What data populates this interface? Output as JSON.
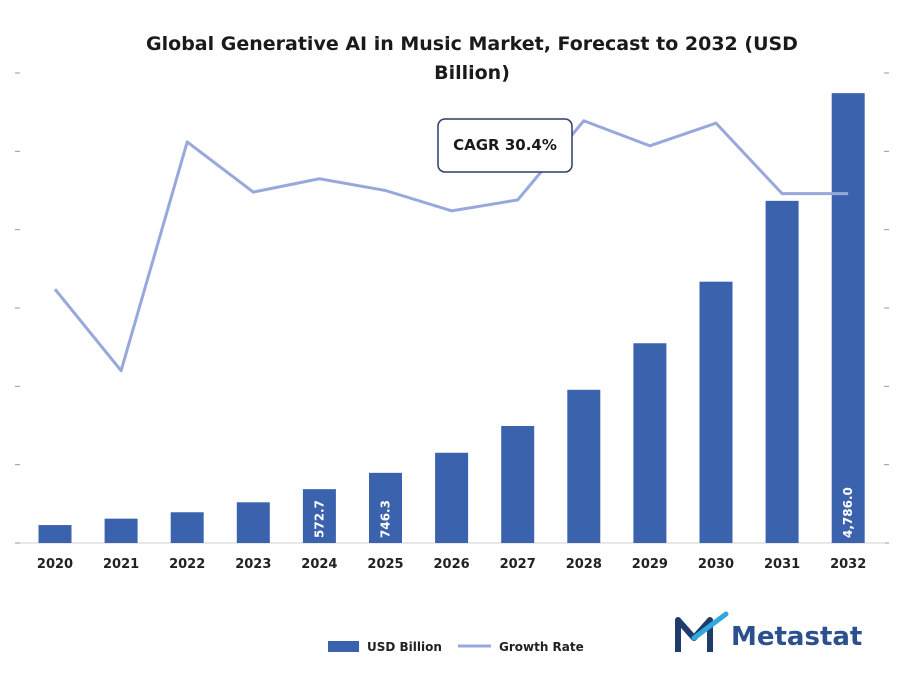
{
  "chart_data": {
    "type": "bar",
    "title_line1": "Global Generative AI in Music Market, Forecast to 2032 (USD",
    "title_line2": "Billion)",
    "categories": [
      "2020",
      "2021",
      "2022",
      "2023",
      "2024",
      "2025",
      "2026",
      "2027",
      "2028",
      "2029",
      "2030",
      "2031",
      "2032"
    ],
    "series": [
      {
        "name": "USD Billion",
        "kind": "bar",
        "color": "#3b63ad",
        "values": [
          191,
          259,
          327,
          433,
          572.7,
          746.3,
          960,
          1245,
          1630,
          2125,
          2780,
          3640,
          4786.0
        ]
      },
      {
        "name": "Growth Rate",
        "kind": "line",
        "color": "#98a8dc",
        "values": [
          32.4,
          22.0,
          51.2,
          44.8,
          46.5,
          45.0,
          42.4,
          43.8,
          53.9,
          50.7,
          53.6,
          44.6,
          44.6
        ]
      }
    ],
    "data_labels": [
      {
        "category_index": 4,
        "text": "572.7"
      },
      {
        "category_index": 5,
        "text": "746.3"
      },
      {
        "category_index": 12,
        "text": "4,786.0"
      }
    ],
    "annotation": "CAGR 30.4%",
    "ylim_bar": [
      0,
      5000
    ],
    "ylim_line": [
      0,
      60
    ],
    "legend_position": "bottom-center",
    "grid": false
  },
  "brand": {
    "name": "Metastat",
    "color": "#2b4f8f",
    "icon": "metastat-m-logo-icon"
  }
}
